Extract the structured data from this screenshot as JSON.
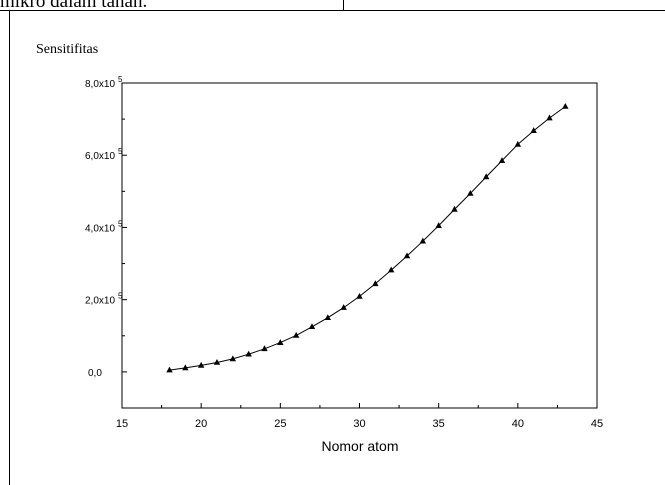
{
  "page": {
    "top_text": "mikro dalam tanah."
  },
  "chart_data": {
    "type": "line",
    "title": "",
    "ylabel": "Sensitifitas",
    "xlabel": "Nomor atom",
    "xlim": [
      15,
      45
    ],
    "ylim": [
      -100000,
      800000
    ],
    "x_ticks": [
      15,
      20,
      25,
      30,
      35,
      40,
      45
    ],
    "x_tick_labels": [
      "15",
      "20",
      "25",
      "30",
      "35",
      "40",
      "45"
    ],
    "y_ticks": [
      0,
      200000,
      400000,
      600000,
      800000
    ],
    "y_tick_labels": [
      {
        "mantissa": "0,0",
        "exp": ""
      },
      {
        "mantissa": "2,0x10",
        "exp": "5"
      },
      {
        "mantissa": "4,0x10",
        "exp": "5"
      },
      {
        "mantissa": "6,0x10",
        "exp": "5"
      },
      {
        "mantissa": "8,0x10",
        "exp": "5"
      }
    ],
    "grid": false,
    "marker": "triangle",
    "series": [
      {
        "x": [
          18,
          19,
          20,
          21,
          22,
          23,
          24,
          25,
          26,
          27,
          28,
          29,
          30,
          31,
          32,
          33,
          34,
          35,
          36,
          37,
          38,
          39,
          40,
          41,
          42,
          43
        ],
        "y": [
          5000,
          11000,
          18000,
          26000,
          36000,
          49000,
          64000,
          81000,
          101000,
          125000,
          150000,
          178000,
          209000,
          244000,
          282000,
          321000,
          362000,
          405000,
          450000,
          494000,
          540000,
          585000,
          630000,
          668000,
          703000,
          735000
        ]
      }
    ]
  }
}
